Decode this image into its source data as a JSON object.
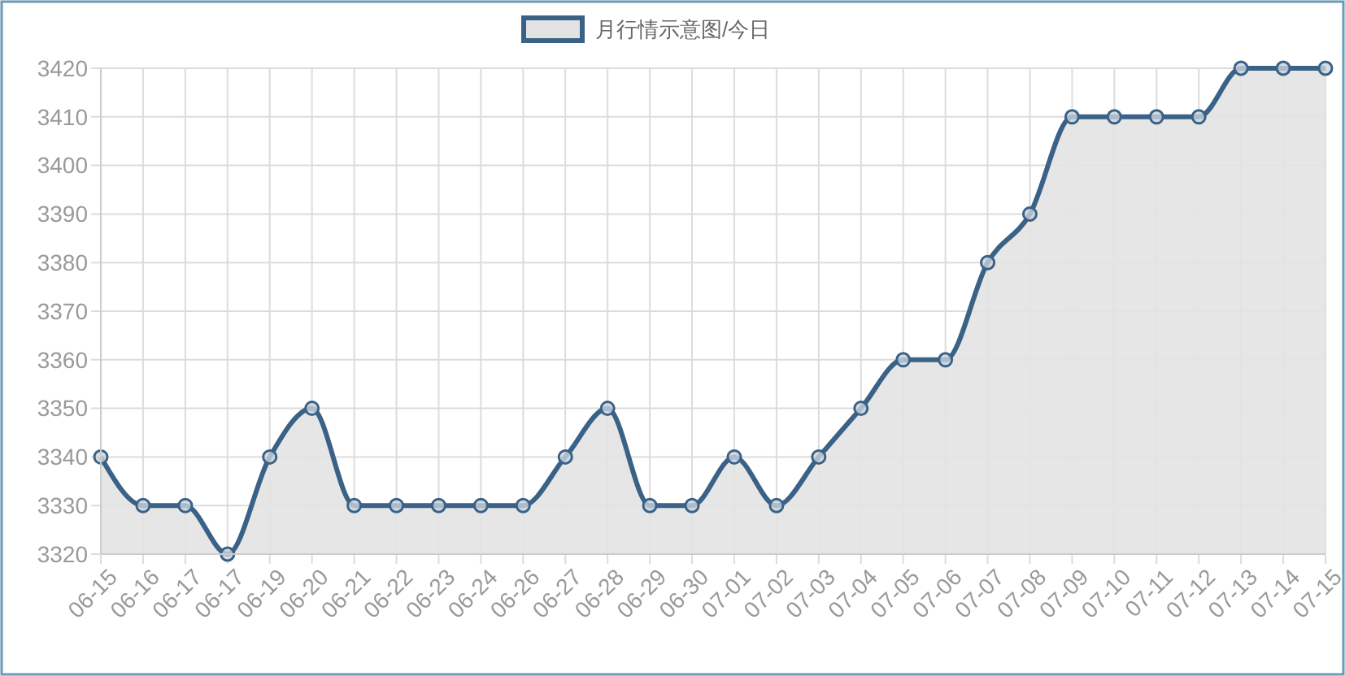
{
  "chart_data": {
    "type": "area",
    "categories": [
      "06-15",
      "06-16",
      "06-17",
      "06-17",
      "06-19",
      "06-20",
      "06-21",
      "06-22",
      "06-23",
      "06-24",
      "06-26",
      "06-27",
      "06-28",
      "06-29",
      "06-30",
      "07-01",
      "07-02",
      "07-03",
      "07-04",
      "07-05",
      "07-06",
      "07-07",
      "07-08",
      "07-09",
      "07-10",
      "07-11",
      "07-12",
      "07-13",
      "07-14",
      "07-15"
    ],
    "series": [
      {
        "name": "月行情示意图/今日",
        "color": "#3a6186",
        "values": [
          3340,
          3330,
          3330,
          3320,
          3340,
          3350,
          3330,
          3330,
          3330,
          3330,
          3330,
          3340,
          3350,
          3330,
          3330,
          3340,
          3330,
          3340,
          3350,
          3360,
          3360,
          3380,
          3390,
          3410,
          3410,
          3410,
          3410,
          3420,
          3420,
          3420
        ]
      }
    ],
    "ylim": [
      3320,
      3420
    ],
    "yticks": [
      3320,
      3330,
      3340,
      3350,
      3360,
      3370,
      3380,
      3390,
      3400,
      3410,
      3420
    ],
    "grid": true,
    "legend": "top",
    "marker": "circle",
    "line_style": "solid"
  }
}
